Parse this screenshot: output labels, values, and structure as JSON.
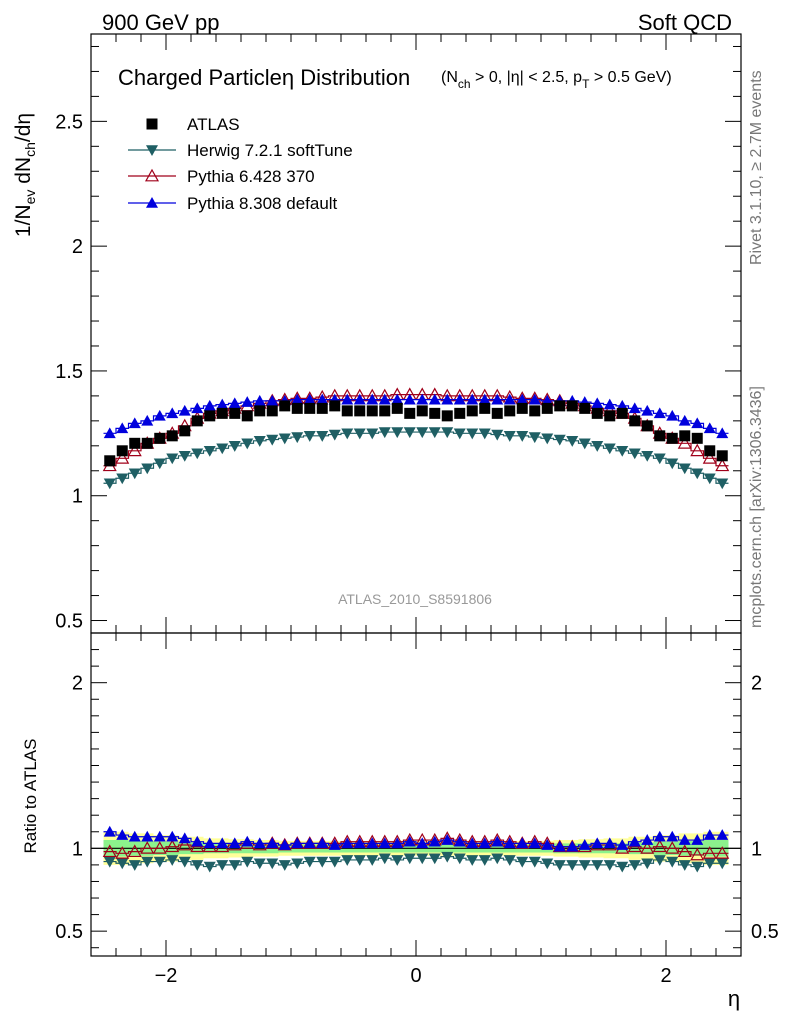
{
  "header": {
    "left": "900 GeV pp",
    "right": "Soft QCD"
  },
  "side": {
    "rivet": "Rivet 3.1.10, ≥ 2.7M events",
    "mcplots": "mcplots.cern.ch [arXiv:1306.3436]"
  },
  "watermark": "ATLAS_2010_S8591806",
  "colors": {
    "atlas": "#000000",
    "herwig": "#1f5f64",
    "py6": "#a0001a",
    "py8": "#0000dd",
    "band_inner": "#8cf28c",
    "band_outer": "#ffff99"
  },
  "chart_data": [
    {
      "type": "scatter",
      "title": "Charged Particleη Distribution",
      "title_cuts": "(N_ch > 0, |η| < 2.5, p_T > 0.5 GeV)",
      "ylabel": "1/N_ev dN_ch/dη",
      "xlim": [
        -2.6,
        2.6
      ],
      "ylim": [
        0.45,
        2.85
      ],
      "yticks": [
        "0.5",
        "1",
        "1.5",
        "2",
        "2.5"
      ],
      "legend_position": "top-left",
      "x": [
        -2.45,
        -2.35,
        -2.25,
        -2.15,
        -2.05,
        -1.95,
        -1.85,
        -1.75,
        -1.65,
        -1.55,
        -1.45,
        -1.35,
        -1.25,
        -1.15,
        -1.05,
        -0.95,
        -0.85,
        -0.75,
        -0.65,
        -0.55,
        -0.45,
        -0.35,
        -0.25,
        -0.15,
        -0.05,
        0.05,
        0.15,
        0.25,
        0.35,
        0.45,
        0.55,
        0.65,
        0.75,
        0.85,
        0.95,
        1.05,
        1.15,
        1.25,
        1.35,
        1.45,
        1.55,
        1.65,
        1.75,
        1.85,
        1.95,
        2.05,
        2.15,
        2.25,
        2.35,
        2.45
      ],
      "series": [
        {
          "name": "ATLAS",
          "marker": "square",
          "color": "#000000",
          "values": [
            1.14,
            1.18,
            1.21,
            1.21,
            1.23,
            1.24,
            1.26,
            1.3,
            1.32,
            1.33,
            1.33,
            1.32,
            1.34,
            1.34,
            1.36,
            1.35,
            1.35,
            1.35,
            1.36,
            1.34,
            1.34,
            1.34,
            1.34,
            1.35,
            1.33,
            1.34,
            1.33,
            1.32,
            1.33,
            1.34,
            1.35,
            1.33,
            1.34,
            1.35,
            1.34,
            1.35,
            1.36,
            1.36,
            1.35,
            1.33,
            1.32,
            1.33,
            1.3,
            1.28,
            1.24,
            1.23,
            1.24,
            1.23,
            1.18,
            1.16
          ]
        },
        {
          "name": "Herwig 7.2.1 softTune",
          "marker": "triangle-down",
          "color": "#1f5f64",
          "values": [
            1.05,
            1.07,
            1.09,
            1.11,
            1.13,
            1.15,
            1.16,
            1.17,
            1.18,
            1.19,
            1.2,
            1.21,
            1.22,
            1.225,
            1.23,
            1.235,
            1.24,
            1.24,
            1.245,
            1.25,
            1.25,
            1.25,
            1.255,
            1.255,
            1.255,
            1.255,
            1.255,
            1.255,
            1.25,
            1.25,
            1.25,
            1.245,
            1.24,
            1.24,
            1.235,
            1.23,
            1.225,
            1.22,
            1.21,
            1.2,
            1.19,
            1.18,
            1.17,
            1.16,
            1.15,
            1.13,
            1.11,
            1.09,
            1.07,
            1.05
          ]
        },
        {
          "name": "Pythia 6.428 370",
          "marker": "triangle-up-open",
          "color": "#a0001a",
          "values": [
            1.12,
            1.15,
            1.18,
            1.21,
            1.23,
            1.25,
            1.28,
            1.31,
            1.33,
            1.34,
            1.35,
            1.36,
            1.37,
            1.38,
            1.385,
            1.39,
            1.39,
            1.395,
            1.4,
            1.4,
            1.4,
            1.4,
            1.4,
            1.405,
            1.405,
            1.405,
            1.405,
            1.4,
            1.4,
            1.4,
            1.4,
            1.4,
            1.395,
            1.39,
            1.39,
            1.385,
            1.38,
            1.37,
            1.36,
            1.35,
            1.34,
            1.33,
            1.31,
            1.28,
            1.25,
            1.23,
            1.21,
            1.18,
            1.15,
            1.12
          ]
        },
        {
          "name": "Pythia 8.308 default",
          "marker": "triangle-up",
          "color": "#0000dd",
          "values": [
            1.25,
            1.27,
            1.29,
            1.3,
            1.32,
            1.33,
            1.34,
            1.35,
            1.36,
            1.365,
            1.37,
            1.375,
            1.38,
            1.38,
            1.38,
            1.385,
            1.385,
            1.385,
            1.385,
            1.385,
            1.385,
            1.385,
            1.385,
            1.385,
            1.385,
            1.385,
            1.385,
            1.385,
            1.385,
            1.385,
            1.385,
            1.385,
            1.385,
            1.385,
            1.385,
            1.38,
            1.38,
            1.38,
            1.375,
            1.37,
            1.365,
            1.36,
            1.35,
            1.34,
            1.33,
            1.32,
            1.3,
            1.29,
            1.27,
            1.25
          ]
        }
      ]
    },
    {
      "type": "scatter",
      "ylabel": "Ratio to ATLAS",
      "xlabel": "η",
      "xlim": [
        -2.6,
        2.6
      ],
      "ylim": [
        0.35,
        2.3
      ],
      "yticks": [
        "0.5",
        "1",
        "2"
      ],
      "xticks": [
        "−2",
        "0",
        "2"
      ],
      "band_inner_halfwidth": [
        0.05,
        0.05,
        0.045,
        0.045,
        0.04,
        0.04,
        0.035,
        0.035,
        0.03,
        0.03,
        0.03,
        0.03,
        0.03,
        0.03,
        0.025,
        0.025,
        0.025,
        0.025,
        0.025,
        0.025,
        0.025,
        0.025,
        0.025,
        0.025,
        0.025,
        0.025,
        0.025,
        0.025,
        0.025,
        0.025,
        0.025,
        0.025,
        0.025,
        0.025,
        0.025,
        0.025,
        0.03,
        0.03,
        0.03,
        0.03,
        0.03,
        0.03,
        0.035,
        0.035,
        0.04,
        0.04,
        0.045,
        0.045,
        0.05,
        0.05
      ],
      "band_outer_halfwidth": [
        0.1,
        0.1,
        0.09,
        0.09,
        0.08,
        0.08,
        0.07,
        0.07,
        0.06,
        0.06,
        0.055,
        0.055,
        0.05,
        0.05,
        0.045,
        0.045,
        0.045,
        0.045,
        0.045,
        0.045,
        0.045,
        0.045,
        0.045,
        0.045,
        0.045,
        0.045,
        0.045,
        0.045,
        0.045,
        0.045,
        0.045,
        0.045,
        0.045,
        0.045,
        0.045,
        0.045,
        0.05,
        0.05,
        0.055,
        0.055,
        0.06,
        0.06,
        0.07,
        0.07,
        0.08,
        0.08,
        0.09,
        0.09,
        0.1,
        0.1
      ],
      "series": [
        {
          "name": "Herwig 7.2.1 softTune",
          "values": [
            0.92,
            0.91,
            0.9,
            0.92,
            0.92,
            0.93,
            0.92,
            0.9,
            0.89,
            0.9,
            0.9,
            0.92,
            0.91,
            0.91,
            0.9,
            0.91,
            0.92,
            0.92,
            0.92,
            0.93,
            0.93,
            0.93,
            0.94,
            0.93,
            0.94,
            0.94,
            0.94,
            0.95,
            0.94,
            0.93,
            0.93,
            0.94,
            0.93,
            0.92,
            0.92,
            0.91,
            0.9,
            0.9,
            0.9,
            0.9,
            0.9,
            0.89,
            0.9,
            0.91,
            0.93,
            0.92,
            0.9,
            0.89,
            0.91,
            0.91
          ]
        },
        {
          "name": "Pythia 6.428 370",
          "values": [
            0.98,
            0.97,
            0.98,
            1.0,
            1.0,
            1.01,
            1.02,
            1.01,
            1.01,
            1.01,
            1.02,
            1.03,
            1.02,
            1.03,
            1.02,
            1.03,
            1.03,
            1.03,
            1.03,
            1.04,
            1.04,
            1.04,
            1.04,
            1.04,
            1.05,
            1.05,
            1.05,
            1.06,
            1.05,
            1.04,
            1.04,
            1.05,
            1.04,
            1.03,
            1.04,
            1.03,
            1.01,
            1.01,
            1.01,
            1.02,
            1.02,
            1.0,
            1.01,
            1.0,
            1.01,
            1.0,
            0.98,
            0.96,
            0.97,
            0.97
          ]
        },
        {
          "name": "Pythia 8.308 default",
          "values": [
            1.1,
            1.08,
            1.07,
            1.07,
            1.07,
            1.07,
            1.06,
            1.04,
            1.03,
            1.03,
            1.03,
            1.04,
            1.03,
            1.03,
            1.02,
            1.03,
            1.03,
            1.03,
            1.02,
            1.03,
            1.03,
            1.03,
            1.03,
            1.03,
            1.04,
            1.03,
            1.04,
            1.05,
            1.04,
            1.03,
            1.03,
            1.04,
            1.03,
            1.03,
            1.03,
            1.02,
            1.01,
            1.01,
            1.02,
            1.03,
            1.03,
            1.02,
            1.04,
            1.05,
            1.07,
            1.07,
            1.05,
            1.05,
            1.08,
            1.08
          ]
        }
      ]
    }
  ]
}
